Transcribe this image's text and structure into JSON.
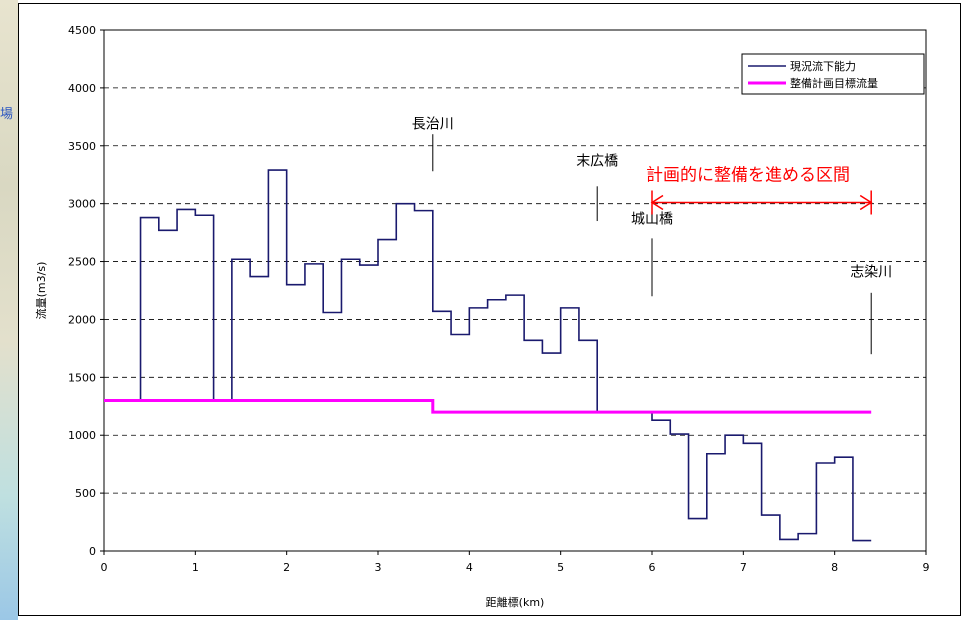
{
  "background_map": {
    "glyph": "場"
  },
  "chart_data": {
    "type": "line",
    "xlabel": "距離標(km)",
    "ylabel": "流量(m3/s)",
    "xlim": [
      0,
      9
    ],
    "ylim": [
      0,
      4500
    ],
    "x_ticks": [
      "0",
      "1",
      "2",
      "3",
      "4",
      "5",
      "6",
      "7",
      "8",
      "9"
    ],
    "y_ticks": [
      "0",
      "500",
      "1000",
      "1500",
      "2000",
      "2500",
      "3000",
      "3500",
      "4000",
      "4500"
    ],
    "grid": "horizontal dashed",
    "legend_position": "top-right",
    "series": [
      {
        "name": "現況流下能力",
        "color": "#1a1a6e",
        "style": "step",
        "x": [
          0.4,
          0.6,
          0.8,
          1.0,
          1.2,
          1.4,
          1.6,
          1.8,
          2.0,
          2.2,
          2.4,
          2.6,
          2.8,
          3.0,
          3.2,
          3.4,
          3.6,
          3.8,
          4.0,
          4.2,
          4.4,
          4.6,
          4.8,
          5.0,
          5.2,
          5.4,
          5.6,
          5.8,
          6.0,
          6.2,
          6.4,
          6.6,
          6.8,
          7.0,
          7.2,
          7.4,
          7.6,
          7.8,
          8.0,
          8.2,
          8.4
        ],
        "y": [
          2880,
          2770,
          2950,
          2900,
          1300,
          2520,
          2370,
          3290,
          2300,
          2480,
          2060,
          2520,
          2470,
          2690,
          3000,
          2940,
          2070,
          1870,
          2100,
          2170,
          2210,
          1820,
          1710,
          2100,
          1820,
          1200,
          1200,
          1200,
          1130,
          1010,
          280,
          840,
          1000,
          930,
          310,
          100,
          150,
          760,
          810,
          90,
          90
        ],
        "start_y": 1300
      },
      {
        "name": "整備計画目標流量",
        "color": "#ff00ff",
        "x": [
          0,
          3.6,
          3.6,
          8.4
        ],
        "y": [
          1300,
          1300,
          1200,
          1200
        ]
      }
    ],
    "annotations": [
      {
        "text": "長治川",
        "x": 3.6,
        "y": 3650,
        "line_from": 3600,
        "line_to": 3280
      },
      {
        "text": "末広橋",
        "x": 5.4,
        "y": 3330,
        "line_from": 3150,
        "line_to": 2850
      },
      {
        "text": "城山橋",
        "x": 6.0,
        "y": 2830,
        "line_from": 2700,
        "line_to": 2200
      },
      {
        "text": "志染川",
        "x": 8.4,
        "y": 2370,
        "line_from": 2230,
        "line_to": 1700
      }
    ],
    "highlight": {
      "text": "計画的に整備を進める区間",
      "x_from": 6.0,
      "x_to": 8.4,
      "y": 3010,
      "color": "#ff0000"
    }
  }
}
